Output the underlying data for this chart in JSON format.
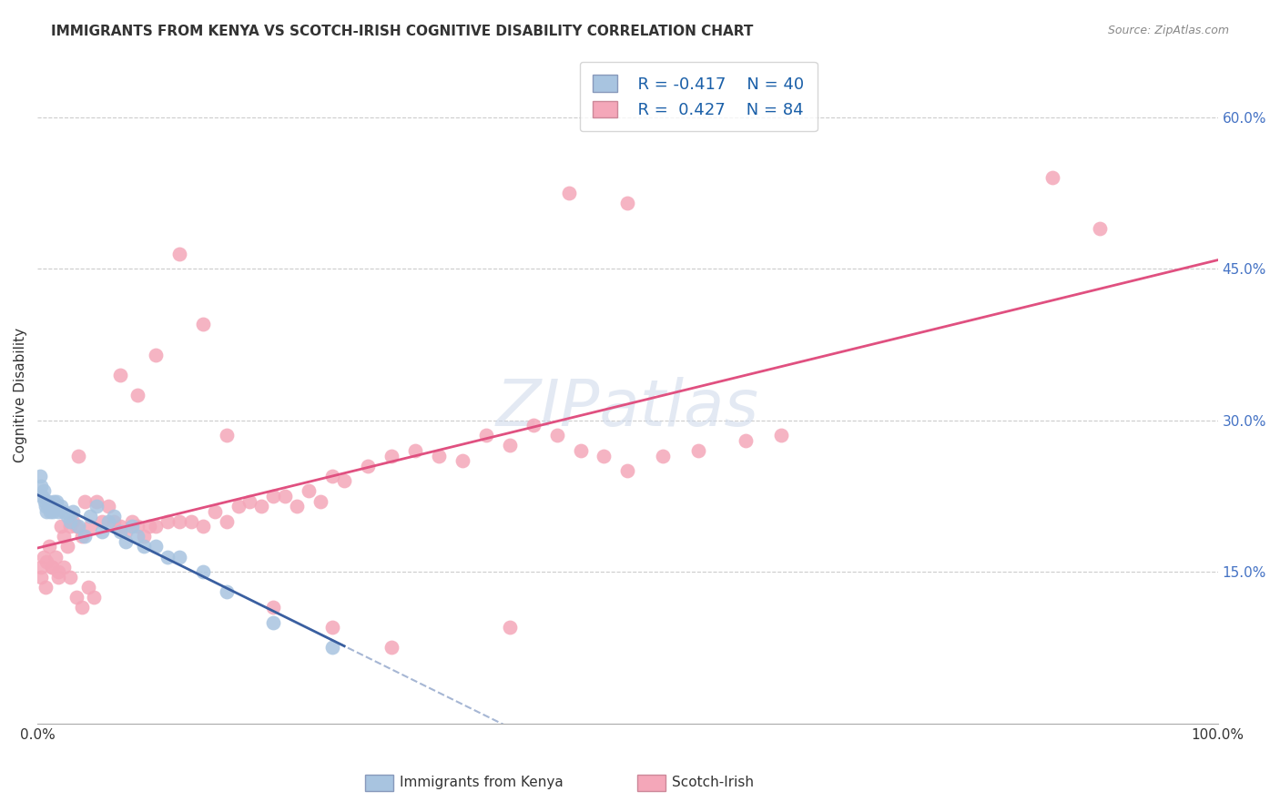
{
  "title": "IMMIGRANTS FROM KENYA VS SCOTCH-IRISH COGNITIVE DISABILITY CORRELATION CHART",
  "source": "Source: ZipAtlas.com",
  "ylabel": "Cognitive Disability",
  "legend_label1": "Immigrants from Kenya",
  "legend_label2": "Scotch-Irish",
  "legend_r1": "R = -0.417",
  "legend_n1": "N = 40",
  "legend_r2": "R =  0.427",
  "legend_n2": "N = 84",
  "color_kenya": "#a8c4e0",
  "color_scotch": "#f4a7b9",
  "color_kenya_line": "#3a5fa0",
  "color_scotch_line": "#e05080",
  "xlim": [
    0,
    1.0
  ],
  "ylim": [
    0,
    0.65
  ],
  "yticks": [
    0.15,
    0.3,
    0.45,
    0.6
  ],
  "ytick_labels": [
    "15.0%",
    "30.0%",
    "45.0%",
    "60.0%"
  ],
  "kenya_x": [
    0.002,
    0.003,
    0.004,
    0.005,
    0.006,
    0.007,
    0.008,
    0.009,
    0.01,
    0.011,
    0.012,
    0.013,
    0.014,
    0.015,
    0.016,
    0.018,
    0.02,
    0.022,
    0.025,
    0.028,
    0.03,
    0.035,
    0.04,
    0.045,
    0.05,
    0.055,
    0.06,
    0.065,
    0.07,
    0.075,
    0.08,
    0.085,
    0.09,
    0.1,
    0.11,
    0.12,
    0.14,
    0.16,
    0.2,
    0.25
  ],
  "kenya_y": [
    0.245,
    0.235,
    0.225,
    0.23,
    0.22,
    0.215,
    0.21,
    0.22,
    0.215,
    0.21,
    0.215,
    0.21,
    0.22,
    0.215,
    0.22,
    0.21,
    0.215,
    0.21,
    0.205,
    0.2,
    0.21,
    0.195,
    0.185,
    0.205,
    0.215,
    0.19,
    0.2,
    0.205,
    0.19,
    0.18,
    0.195,
    0.185,
    0.175,
    0.175,
    0.165,
    0.165,
    0.15,
    0.13,
    0.1,
    0.075
  ],
  "scotch_x": [
    0.003,
    0.005,
    0.008,
    0.01,
    0.012,
    0.015,
    0.018,
    0.02,
    0.022,
    0.025,
    0.028,
    0.03,
    0.033,
    0.035,
    0.038,
    0.04,
    0.045,
    0.05,
    0.055,
    0.06,
    0.065,
    0.07,
    0.075,
    0.08,
    0.085,
    0.09,
    0.095,
    0.1,
    0.11,
    0.12,
    0.13,
    0.14,
    0.15,
    0.16,
    0.17,
    0.18,
    0.19,
    0.2,
    0.21,
    0.22,
    0.23,
    0.24,
    0.25,
    0.26,
    0.28,
    0.3,
    0.32,
    0.34,
    0.36,
    0.38,
    0.4,
    0.42,
    0.44,
    0.46,
    0.48,
    0.5,
    0.53,
    0.56,
    0.6,
    0.63,
    0.003,
    0.007,
    0.012,
    0.018,
    0.022,
    0.028,
    0.033,
    0.038,
    0.043,
    0.048,
    0.07,
    0.085,
    0.1,
    0.12,
    0.14,
    0.16,
    0.2,
    0.25,
    0.3,
    0.4,
    0.45,
    0.5,
    0.86,
    0.9
  ],
  "scotch_y": [
    0.155,
    0.165,
    0.16,
    0.175,
    0.155,
    0.165,
    0.15,
    0.195,
    0.185,
    0.175,
    0.195,
    0.2,
    0.195,
    0.265,
    0.185,
    0.22,
    0.195,
    0.22,
    0.2,
    0.215,
    0.2,
    0.195,
    0.19,
    0.2,
    0.195,
    0.185,
    0.195,
    0.195,
    0.2,
    0.2,
    0.2,
    0.195,
    0.21,
    0.2,
    0.215,
    0.22,
    0.215,
    0.225,
    0.225,
    0.215,
    0.23,
    0.22,
    0.245,
    0.24,
    0.255,
    0.265,
    0.27,
    0.265,
    0.26,
    0.285,
    0.275,
    0.295,
    0.285,
    0.27,
    0.265,
    0.25,
    0.265,
    0.27,
    0.28,
    0.285,
    0.145,
    0.135,
    0.155,
    0.145,
    0.155,
    0.145,
    0.125,
    0.115,
    0.135,
    0.125,
    0.345,
    0.325,
    0.365,
    0.465,
    0.395,
    0.285,
    0.115,
    0.095,
    0.075,
    0.095,
    0.525,
    0.515,
    0.54,
    0.49
  ]
}
